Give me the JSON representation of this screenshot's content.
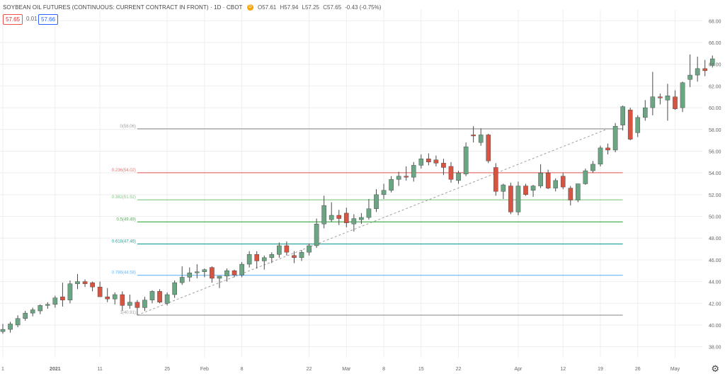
{
  "legend": {
    "symbol": "SOYBEAN OIL FUTURES (CONTINUOUS: CURRENT CONTRACT IN FRONT) · 1D · CBOT",
    "badge": "D",
    "open": "O57.61",
    "high": "H57.94",
    "low": "L57.25",
    "close": "C57.65",
    "change": "-0.43 (-0.75%)",
    "bid": "57.65",
    "spread": "0.01",
    "ask": "57.66"
  },
  "colors": {
    "up": "#6ba583",
    "down": "#d75442",
    "grid": "#eeeeee",
    "axis_text": "#666666",
    "level_0": "#9e9e9e",
    "level_0236": "#e57373",
    "level_0382": "#81c784",
    "level_05": "#4caf50",
    "level_0618": "#26a69a",
    "level_0786": "#64b5f6",
    "level_1": "#9e9e9e",
    "trend": "#9e9e9e"
  },
  "settings_icon": "gear-icon",
  "chart_data": {
    "type": "candlestick",
    "title": "SOYBEAN OIL FUTURES (CONTINUOUS: CURRENT CONTRACT IN FRONT)",
    "interval": "1D",
    "exchange": "CBOT",
    "y_axis_side": "right",
    "ylim": [
      37,
      69
    ],
    "y_ticks": [
      38,
      40,
      42,
      44,
      46,
      48,
      50,
      52,
      54,
      56,
      58,
      60,
      62,
      64,
      66,
      68
    ],
    "y_tick_labels": [
      "38.00",
      "40.00",
      "42.00",
      "44.00",
      "46.00",
      "48.00",
      "50.00",
      "52.00",
      "54.00",
      "56.00",
      "58.00",
      "60.00",
      "62.00",
      "64.00",
      "66.00",
      "68.00"
    ],
    "x_tick_labels": [
      {
        "label": "1",
        "index": 0
      },
      {
        "label": "2021",
        "index": 7
      },
      {
        "label": "11",
        "index": 13
      },
      {
        "label": "25",
        "index": 22
      },
      {
        "label": "Feb",
        "index": 27
      },
      {
        "label": "8",
        "index": 32
      },
      {
        "label": "22",
        "index": 41
      },
      {
        "label": "Mar",
        "index": 46
      },
      {
        "label": "8",
        "index": 51
      },
      {
        "label": "15",
        "index": 56
      },
      {
        "label": "22",
        "index": 61
      },
      {
        "label": "Apr",
        "index": 69
      },
      {
        "label": "12",
        "index": 75
      },
      {
        "label": "19",
        "index": 80
      },
      {
        "label": "26",
        "index": 85
      },
      {
        "label": "May",
        "index": 90
      }
    ],
    "grid": true,
    "fibonacci": {
      "levels": [
        {
          "ratio": "0",
          "price": 58.06,
          "label": "0(58.06)",
          "color_key": "level_0"
        },
        {
          "ratio": "0.236",
          "price": 54.02,
          "label": "0.236(54.02)",
          "color_key": "level_0236"
        },
        {
          "ratio": "0.382",
          "price": 51.52,
          "label": "0.382(51.52)",
          "color_key": "level_0382"
        },
        {
          "ratio": "0.5",
          "price": 49.49,
          "label": "0.5(49.49)",
          "color_key": "level_05"
        },
        {
          "ratio": "0.618",
          "price": 47.46,
          "label": "0.618(47.46)",
          "color_key": "level_0618"
        },
        {
          "ratio": "0.786",
          "price": 44.58,
          "label": "0.786(44.58)",
          "color_key": "level_0786"
        },
        {
          "ratio": "1",
          "price": 40.91,
          "label": "1(40.91)",
          "color_key": "level_1"
        }
      ],
      "start_index": 18,
      "end_index": 83,
      "trend_start": {
        "index": 18,
        "price": 40.91
      },
      "trend_end": {
        "index": 81,
        "price": 58.06
      }
    },
    "candles": [
      {
        "o": 39.4,
        "h": 40.1,
        "l": 39.2,
        "c": 39.6
      },
      {
        "o": 39.6,
        "h": 40.3,
        "l": 39.3,
        "c": 40.1
      },
      {
        "o": 40.0,
        "h": 40.9,
        "l": 39.8,
        "c": 40.6
      },
      {
        "o": 40.6,
        "h": 41.3,
        "l": 40.4,
        "c": 41.1
      },
      {
        "o": 41.1,
        "h": 41.6,
        "l": 40.8,
        "c": 41.4
      },
      {
        "o": 41.3,
        "h": 41.9,
        "l": 41.0,
        "c": 41.8
      },
      {
        "o": 41.8,
        "h": 42.1,
        "l": 41.5,
        "c": 41.9
      },
      {
        "o": 41.9,
        "h": 42.7,
        "l": 41.6,
        "c": 42.5
      },
      {
        "o": 42.6,
        "h": 43.9,
        "l": 41.7,
        "c": 42.3
      },
      {
        "o": 42.3,
        "h": 44.1,
        "l": 42.0,
        "c": 43.8
      },
      {
        "o": 43.8,
        "h": 44.7,
        "l": 43.3,
        "c": 44.0
      },
      {
        "o": 44.0,
        "h": 44.2,
        "l": 43.5,
        "c": 43.8
      },
      {
        "o": 43.9,
        "h": 44.0,
        "l": 43.1,
        "c": 43.5
      },
      {
        "o": 43.5,
        "h": 44.0,
        "l": 42.7,
        "c": 42.6
      },
      {
        "o": 42.6,
        "h": 43.4,
        "l": 42.1,
        "c": 42.4
      },
      {
        "o": 42.4,
        "h": 43.0,
        "l": 41.9,
        "c": 42.8
      },
      {
        "o": 42.8,
        "h": 43.1,
        "l": 41.3,
        "c": 41.8
      },
      {
        "o": 41.8,
        "h": 42.8,
        "l": 41.5,
        "c": 42.1
      },
      {
        "o": 42.1,
        "h": 42.3,
        "l": 40.9,
        "c": 41.6
      },
      {
        "o": 41.6,
        "h": 42.6,
        "l": 41.3,
        "c": 42.3
      },
      {
        "o": 42.3,
        "h": 43.2,
        "l": 42.0,
        "c": 43.1
      },
      {
        "o": 43.1,
        "h": 43.3,
        "l": 42.0,
        "c": 42.1
      },
      {
        "o": 42.0,
        "h": 43.0,
        "l": 41.8,
        "c": 42.8
      },
      {
        "o": 42.8,
        "h": 44.1,
        "l": 42.5,
        "c": 43.9
      },
      {
        "o": 43.9,
        "h": 45.4,
        "l": 43.7,
        "c": 44.4
      },
      {
        "o": 44.4,
        "h": 45.3,
        "l": 44.0,
        "c": 44.8
      },
      {
        "o": 44.8,
        "h": 45.6,
        "l": 44.3,
        "c": 44.9
      },
      {
        "o": 44.9,
        "h": 45.2,
        "l": 44.4,
        "c": 45.1
      },
      {
        "o": 45.3,
        "h": 45.4,
        "l": 43.9,
        "c": 44.3
      },
      {
        "o": 44.3,
        "h": 44.5,
        "l": 43.4,
        "c": 44.5
      },
      {
        "o": 44.5,
        "h": 45.2,
        "l": 44.0,
        "c": 45.0
      },
      {
        "o": 45.0,
        "h": 45.1,
        "l": 44.4,
        "c": 44.6
      },
      {
        "o": 44.6,
        "h": 45.8,
        "l": 44.4,
        "c": 45.6
      },
      {
        "o": 45.6,
        "h": 46.8,
        "l": 45.3,
        "c": 46.5
      },
      {
        "o": 46.5,
        "h": 46.8,
        "l": 45.2,
        "c": 45.9
      },
      {
        "o": 45.9,
        "h": 46.4,
        "l": 45.1,
        "c": 46.2
      },
      {
        "o": 46.2,
        "h": 46.7,
        "l": 45.7,
        "c": 46.5
      },
      {
        "o": 46.5,
        "h": 47.6,
        "l": 46.2,
        "c": 47.3
      },
      {
        "o": 47.3,
        "h": 47.7,
        "l": 46.4,
        "c": 46.7
      },
      {
        "o": 46.4,
        "h": 46.8,
        "l": 45.7,
        "c": 46.2
      },
      {
        "o": 46.2,
        "h": 46.9,
        "l": 45.9,
        "c": 46.7
      },
      {
        "o": 46.7,
        "h": 47.5,
        "l": 46.4,
        "c": 47.3
      },
      {
        "o": 47.3,
        "h": 49.8,
        "l": 47.1,
        "c": 49.3
      },
      {
        "o": 49.3,
        "h": 51.9,
        "l": 48.9,
        "c": 51.0
      },
      {
        "o": 49.7,
        "h": 51.3,
        "l": 49.5,
        "c": 50.1
      },
      {
        "o": 50.1,
        "h": 50.6,
        "l": 49.2,
        "c": 49.8
      },
      {
        "o": 50.3,
        "h": 50.8,
        "l": 49.0,
        "c": 49.4
      },
      {
        "o": 49.3,
        "h": 50.2,
        "l": 48.6,
        "c": 49.8
      },
      {
        "o": 49.7,
        "h": 50.3,
        "l": 49.3,
        "c": 49.9
      },
      {
        "o": 49.9,
        "h": 51.6,
        "l": 49.7,
        "c": 50.7
      },
      {
        "o": 50.7,
        "h": 52.5,
        "l": 50.4,
        "c": 52.0
      },
      {
        "o": 52.0,
        "h": 53.0,
        "l": 51.6,
        "c": 52.4
      },
      {
        "o": 52.4,
        "h": 53.7,
        "l": 52.2,
        "c": 53.4
      },
      {
        "o": 53.4,
        "h": 54.1,
        "l": 52.8,
        "c": 53.7
      },
      {
        "o": 53.7,
        "h": 54.6,
        "l": 53.3,
        "c": 53.6
      },
      {
        "o": 53.6,
        "h": 55.0,
        "l": 53.2,
        "c": 54.7
      },
      {
        "o": 54.7,
        "h": 55.7,
        "l": 54.4,
        "c": 55.3
      },
      {
        "o": 55.3,
        "h": 55.8,
        "l": 54.7,
        "c": 55.0
      },
      {
        "o": 55.2,
        "h": 55.6,
        "l": 54.6,
        "c": 54.9
      },
      {
        "o": 54.9,
        "h": 55.3,
        "l": 53.8,
        "c": 54.5
      },
      {
        "o": 54.6,
        "h": 55.0,
        "l": 53.1,
        "c": 53.4
      },
      {
        "o": 53.3,
        "h": 54.2,
        "l": 53.0,
        "c": 54.0
      },
      {
        "o": 53.9,
        "h": 56.8,
        "l": 53.7,
        "c": 56.4
      },
      {
        "o": 57.5,
        "h": 58.3,
        "l": 56.8,
        "c": 57.4
      },
      {
        "o": 56.8,
        "h": 58.1,
        "l": 56.5,
        "c": 57.5
      },
      {
        "o": 57.5,
        "h": 57.6,
        "l": 54.9,
        "c": 55.1
      },
      {
        "o": 54.5,
        "h": 54.9,
        "l": 51.9,
        "c": 52.3
      },
      {
        "o": 52.3,
        "h": 53.0,
        "l": 51.6,
        "c": 52.9
      },
      {
        "o": 52.8,
        "h": 53.1,
        "l": 50.2,
        "c": 50.4
      },
      {
        "o": 50.4,
        "h": 53.2,
        "l": 50.1,
        "c": 52.8
      },
      {
        "o": 52.8,
        "h": 53.0,
        "l": 51.9,
        "c": 52.0
      },
      {
        "o": 52.4,
        "h": 52.9,
        "l": 51.8,
        "c": 52.8
      },
      {
        "o": 52.8,
        "h": 54.8,
        "l": 52.6,
        "c": 54.0
      },
      {
        "o": 54.0,
        "h": 54.3,
        "l": 52.5,
        "c": 52.6
      },
      {
        "o": 52.6,
        "h": 53.5,
        "l": 52.3,
        "c": 53.3
      },
      {
        "o": 53.7,
        "h": 54.0,
        "l": 52.5,
        "c": 52.7
      },
      {
        "o": 52.6,
        "h": 52.8,
        "l": 51.0,
        "c": 51.5
      },
      {
        "o": 51.5,
        "h": 53.0,
        "l": 51.3,
        "c": 53.0
      },
      {
        "o": 53.0,
        "h": 54.4,
        "l": 52.9,
        "c": 54.2
      },
      {
        "o": 54.2,
        "h": 55.1,
        "l": 54.0,
        "c": 54.8
      },
      {
        "o": 54.8,
        "h": 56.5,
        "l": 54.6,
        "c": 56.3
      },
      {
        "o": 56.3,
        "h": 56.7,
        "l": 55.7,
        "c": 56.1
      },
      {
        "o": 56.1,
        "h": 58.6,
        "l": 55.9,
        "c": 58.3
      },
      {
        "o": 58.4,
        "h": 60.2,
        "l": 57.9,
        "c": 60.1
      },
      {
        "o": 59.8,
        "h": 60.0,
        "l": 57.0,
        "c": 57.1
      },
      {
        "o": 57.7,
        "h": 59.3,
        "l": 57.3,
        "c": 59.1
      },
      {
        "o": 59.1,
        "h": 60.7,
        "l": 58.8,
        "c": 60.0
      },
      {
        "o": 60.0,
        "h": 63.3,
        "l": 59.3,
        "c": 61.0
      },
      {
        "o": 61.0,
        "h": 61.3,
        "l": 60.3,
        "c": 60.9
      },
      {
        "o": 60.7,
        "h": 62.2,
        "l": 58.8,
        "c": 61.1
      },
      {
        "o": 61.0,
        "h": 61.6,
        "l": 59.8,
        "c": 59.9
      },
      {
        "o": 60.0,
        "h": 62.4,
        "l": 59.6,
        "c": 62.3
      },
      {
        "o": 62.6,
        "h": 64.9,
        "l": 61.9,
        "c": 63.0
      },
      {
        "o": 63.0,
        "h": 64.7,
        "l": 62.4,
        "c": 63.6
      },
      {
        "o": 63.6,
        "h": 64.4,
        "l": 62.9,
        "c": 63.4
      },
      {
        "o": 63.9,
        "h": 64.8,
        "l": 63.7,
        "c": 64.5
      }
    ]
  }
}
